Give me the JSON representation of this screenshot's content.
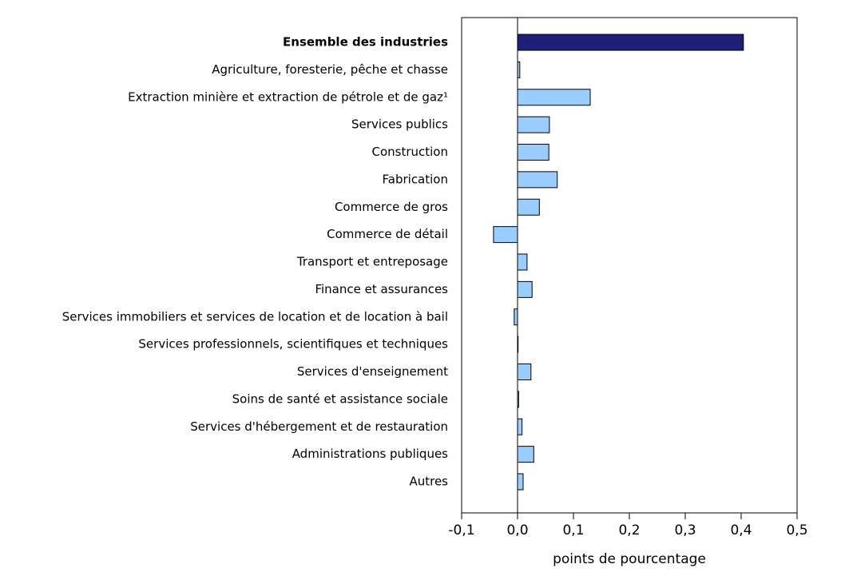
{
  "chart_data": {
    "type": "barh",
    "categories": [
      "Ensemble des industries",
      "Agriculture, foresterie, pêche et chasse",
      "Extraction minière et extraction de pétrole et de gaz¹",
      "Services publics",
      "Construction",
      "Fabrication",
      "Commerce de gros",
      "Commerce de détail",
      "Transport et entreposage",
      "Finance et assurances",
      "Services immobiliers et services de location et de location à bail",
      "Services professionnels, scientifiques et techniques",
      "Services d'enseignement",
      "Soins de santé et assistance sociale",
      "Services d'hébergement et de restauration",
      "Administrations publiques",
      "Autres"
    ],
    "values": [
      0.404,
      0.004,
      0.13,
      0.057,
      0.056,
      0.071,
      0.039,
      -0.043,
      0.017,
      0.026,
      -0.006,
      0.001,
      0.024,
      0.002,
      0.008,
      0.029,
      0.01
    ],
    "colors": [
      "#1f1f7a",
      "#99ccff",
      "#99ccff",
      "#99ccff",
      "#99ccff",
      "#99ccff",
      "#99ccff",
      "#99ccff",
      "#99ccff",
      "#99ccff",
      "#99ccff",
      "#99ccff",
      "#99ccff",
      "#99ccff",
      "#99ccff",
      "#99ccff",
      "#99ccff"
    ],
    "xlabel": "points de pourcentage",
    "xlim": [
      -0.1,
      0.5
    ],
    "xticks": [
      {
        "value": -0.1,
        "label": "-0,1"
      },
      {
        "value": 0,
        "label": "0,0"
      },
      {
        "value": 0.1,
        "label": "0,1"
      },
      {
        "value": 0.2,
        "label": "0,2"
      },
      {
        "value": 0.3,
        "label": "0,3"
      },
      {
        "value": 0.4,
        "label": "0,4"
      },
      {
        "value": 0.5,
        "label": "0,5"
      }
    ]
  }
}
